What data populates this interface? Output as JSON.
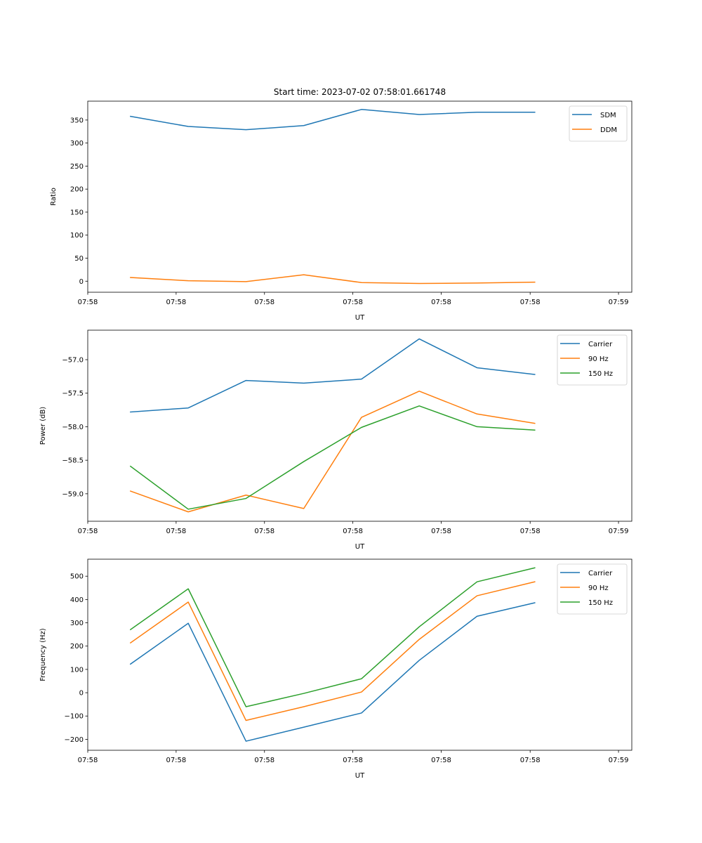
{
  "figure_title": "Start time: 2023-07-02 07:58:01.661748",
  "chart_data": [
    {
      "type": "line",
      "title": "Start time: 2023-07-02 07:58:01.661748",
      "xlabel": "UT",
      "ylabel": "Ratio",
      "x_tick_labels": [
        "07:58",
        "07:58",
        "07:58",
        "07:58",
        "07:58",
        "07:58",
        "07:59"
      ],
      "y_ticks": [
        0,
        50,
        100,
        150,
        200,
        250,
        300,
        350
      ],
      "y_tick_labels": [
        "0",
        "50",
        "100",
        "150",
        "200",
        "250",
        "300",
        "350"
      ],
      "ylim": [
        -24,
        391
      ],
      "x_index_range": [
        -0.74,
        8.68
      ],
      "x_tick_positions": [
        -0.74,
        0.79,
        2.32,
        3.85,
        5.38,
        6.92,
        8.45
      ],
      "x_points": [
        0,
        1,
        2,
        3,
        4,
        5,
        6,
        7
      ],
      "legend": "top-right",
      "grid": false,
      "series": [
        {
          "name": "SDM",
          "color": "#1f77b4",
          "values": [
            358,
            336,
            329,
            338,
            373,
            362,
            367,
            367
          ]
        },
        {
          "name": "DDM",
          "color": "#ff7f0e",
          "values": [
            8,
            1,
            -1,
            14,
            -3,
            -5,
            -4,
            -2
          ]
        }
      ]
    },
    {
      "type": "line",
      "title": "",
      "xlabel": "UT",
      "ylabel": "Power (dB)",
      "x_tick_labels": [
        "07:58",
        "07:58",
        "07:58",
        "07:58",
        "07:58",
        "07:58",
        "07:59"
      ],
      "y_ticks": [
        -59.0,
        -58.5,
        -58.0,
        -57.5,
        -57.0
      ],
      "y_tick_labels": [
        "−59.0",
        "−58.5",
        "−58.0",
        "−57.5",
        "−57.0"
      ],
      "ylim": [
        -59.41,
        -56.56
      ],
      "x_index_range": [
        -0.74,
        8.68
      ],
      "x_tick_positions": [
        -0.74,
        0.79,
        2.32,
        3.85,
        5.38,
        6.92,
        8.45
      ],
      "x_points": [
        0,
        1,
        2,
        3,
        4,
        5,
        6,
        7
      ],
      "legend": "top-right",
      "grid": false,
      "series": [
        {
          "name": "Carrier",
          "color": "#1f77b4",
          "values": [
            -57.78,
            -57.72,
            -57.31,
            -57.35,
            -57.29,
            -56.69,
            -57.12,
            -57.22
          ]
        },
        {
          "name": "90 Hz",
          "color": "#ff7f0e",
          "values": [
            -58.96,
            -59.27,
            -59.02,
            -59.22,
            -57.86,
            -57.47,
            -57.81,
            -57.95
          ]
        },
        {
          "name": "150 Hz",
          "color": "#2ca02c",
          "values": [
            -58.59,
            -59.23,
            -59.07,
            -58.52,
            -58.01,
            -57.69,
            -58.0,
            -58.05
          ]
        }
      ]
    },
    {
      "type": "line",
      "title": "",
      "xlabel": "UT",
      "ylabel": "Frequency (Hz)",
      "x_tick_labels": [
        "07:58",
        "07:58",
        "07:58",
        "07:58",
        "07:58",
        "07:58",
        "07:59"
      ],
      "y_ticks": [
        -200,
        -100,
        0,
        100,
        200,
        300,
        400,
        500
      ],
      "y_tick_labels": [
        "−200",
        "−100",
        "0",
        "100",
        "200",
        "300",
        "400",
        "500"
      ],
      "ylim": [
        -247,
        573
      ],
      "x_index_range": [
        -0.74,
        8.68
      ],
      "x_tick_positions": [
        -0.74,
        0.79,
        2.32,
        3.85,
        5.38,
        6.92,
        8.45
      ],
      "x_points": [
        0,
        1,
        2,
        3,
        4,
        5,
        6,
        7
      ],
      "legend": "top-right",
      "grid": false,
      "series": [
        {
          "name": "Carrier",
          "color": "#1f77b4",
          "values": [
            123,
            298,
            -208,
            -148,
            -87,
            139,
            328,
            386
          ]
        },
        {
          "name": "90 Hz",
          "color": "#ff7f0e",
          "values": [
            214,
            389,
            -119,
            -60,
            3,
            229,
            416,
            476
          ]
        },
        {
          "name": "150 Hz",
          "color": "#2ca02c",
          "values": [
            271,
            446,
            -60,
            -3,
            60,
            283,
            476,
            536
          ]
        }
      ]
    }
  ]
}
